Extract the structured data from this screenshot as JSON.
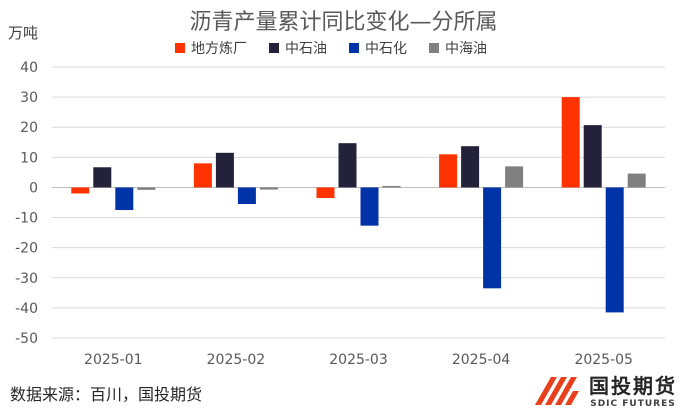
{
  "title": "沥青产量累计同比变化—分所属",
  "unit": "万吨",
  "source": "数据来源：百川，国投期货",
  "logo": {
    "cn": "国投期货",
    "en": "SDIC FUTURES"
  },
  "chart_data": {
    "type": "bar",
    "title": "沥青产量累计同比变化—分所属",
    "ylabel": "万吨",
    "xlabel": "",
    "ylim": [
      -50,
      40
    ],
    "yticks": [
      40,
      30,
      20,
      10,
      0,
      -10,
      -20,
      -30,
      -40,
      -50
    ],
    "grid": true,
    "legend_position": "top",
    "categories": [
      "2025-01",
      "2025-02",
      "2025-03",
      "2025-04",
      "2025-05"
    ],
    "series": [
      {
        "name": "地方炼厂",
        "color": "#ff3300",
        "values": [
          -2,
          8,
          -3.5,
          11,
          30
        ]
      },
      {
        "name": "中石油",
        "color": "#24213b",
        "values": [
          6.7,
          11.5,
          14.7,
          13.7,
          20.7
        ]
      },
      {
        "name": "中石化",
        "color": "#0033a8",
        "values": [
          -7.5,
          -5.5,
          -12.7,
          -33.5,
          -41.5
        ]
      },
      {
        "name": "中海油",
        "color": "#808080",
        "values": [
          -0.8,
          -0.7,
          0.5,
          7,
          4.6
        ]
      }
    ]
  }
}
